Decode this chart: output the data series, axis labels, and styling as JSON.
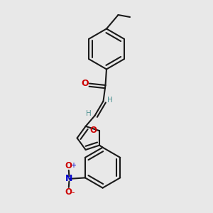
{
  "bg": "#e8e8e8",
  "black": "#1a1a1a",
  "red": "#cc0000",
  "blue": "#0000cc",
  "teal": "#4a9090",
  "lw": 1.5,
  "r_hex": 0.095,
  "r_fur": 0.058,
  "xlim": [
    0,
    1
  ],
  "ylim": [
    0,
    1
  ]
}
